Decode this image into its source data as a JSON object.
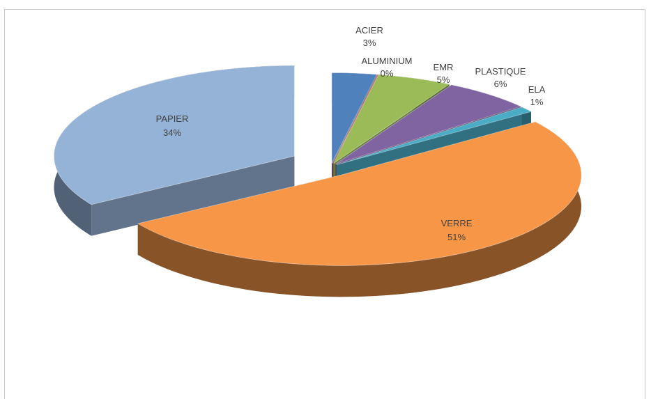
{
  "chart_data": {
    "type": "pie",
    "style": "3d-exploded",
    "title": "",
    "categories": [
      "ACIER",
      "ALUMINIUM",
      "EMR",
      "PLASTIQUE",
      "ELA",
      "VERRE",
      "PAPIER"
    ],
    "values": [
      3,
      0,
      5,
      6,
      1,
      51,
      34
    ],
    "data_labels": [
      "3%",
      "0%",
      "5%",
      "6%",
      "1%",
      "51%",
      "34%"
    ],
    "colors": [
      "#4f81bd",
      "#c0504d",
      "#9bbb59",
      "#8064a2",
      "#4bacc6",
      "#f79646",
      "#95b3d7"
    ],
    "legend": "none"
  }
}
